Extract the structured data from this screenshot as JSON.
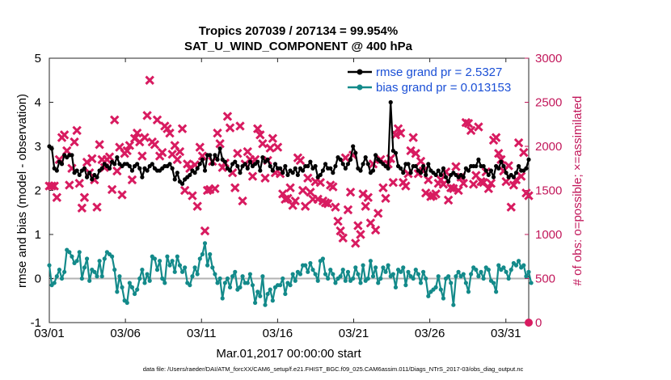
{
  "chart_data": {
    "type": "line",
    "title": "Tropics 207039 / 207134 = 99.954%",
    "subtitle": "SAT_U_WIND_COMPONENT @ 400 hPa",
    "xlabel": "Mar.01,2017 00:00:00 start",
    "ylabel": "rmse and bias (model - observation)",
    "y2label": "# of obs: o=possible; ×=assimilated",
    "ylim": [
      -1,
      5
    ],
    "y2lim": [
      0,
      3000
    ],
    "xlim": [
      1,
      32.5
    ],
    "x_ticks": [
      1,
      6,
      11,
      16,
      21,
      26,
      31
    ],
    "x_tick_labels": [
      "03/01",
      "03/06",
      "03/11",
      "03/16",
      "03/21",
      "03/26",
      "03/31"
    ],
    "y_ticks": [
      -1,
      0,
      1,
      2,
      3,
      4,
      5
    ],
    "y_tick_labels": [
      "-1",
      "0",
      "1",
      "2",
      "3",
      "4",
      "5"
    ],
    "y2_ticks": [
      0,
      500,
      1000,
      1500,
      2000,
      2500,
      3000
    ],
    "y2_tick_labels": [
      "0",
      "500",
      "1000",
      "1500",
      "2000",
      "2500",
      "3000"
    ],
    "zero_line": 0,
    "legend_position": "top-right",
    "series": [
      {
        "name": "rmse grand pr = 2.5327",
        "color": "#000000",
        "marker": "circle",
        "axis": "left",
        "values": [
          3.0,
          2.95,
          2.5,
          2.45,
          2.65,
          2.6,
          2.8,
          2.75,
          2.8,
          2.8,
          2.4,
          2.45,
          2.35,
          2.45,
          2.5,
          2.3,
          2.4,
          2.25,
          2.35,
          2.3,
          2.45,
          2.5,
          2.6,
          2.55,
          2.5,
          2.65,
          2.6,
          2.75,
          2.6,
          2.55,
          2.6,
          2.6,
          2.55,
          2.45,
          2.55,
          2.6,
          2.5,
          2.3,
          2.5,
          2.45,
          2.55,
          2.6,
          2.5,
          2.45,
          2.45,
          2.5,
          2.55,
          2.55,
          2.6,
          2.5,
          2.25,
          2.4,
          2.2,
          2.15,
          2.25,
          2.3,
          2.35,
          2.45,
          2.4,
          2.5,
          2.6,
          2.7,
          2.45,
          2.8,
          2.8,
          2.6,
          2.8,
          2.7,
          2.95,
          2.7,
          2.65,
          2.5,
          2.45,
          2.6,
          2.65,
          2.55,
          2.4,
          2.55,
          2.6,
          2.5,
          2.65,
          2.55,
          2.6,
          2.65,
          2.45,
          2.75,
          2.65,
          2.7,
          2.55,
          2.45,
          2.6,
          2.5,
          2.5,
          2.4,
          2.55,
          2.35,
          2.45,
          2.4,
          2.5,
          2.35,
          2.5,
          2.45,
          2.55,
          2.55,
          2.65,
          2.5,
          2.55,
          2.3,
          2.35,
          2.45,
          2.6,
          2.5,
          2.5,
          2.4,
          2.55,
          2.75,
          2.7,
          2.6,
          2.5,
          2.6,
          2.7,
          3.0,
          2.85,
          2.5,
          2.45,
          2.6,
          2.75,
          2.6,
          2.4,
          2.45,
          2.8,
          2.7,
          2.65,
          2.6,
          2.55,
          2.5,
          4.0,
          2.9,
          2.85,
          2.55,
          2.5,
          2.4,
          2.6,
          2.6,
          2.4,
          2.55,
          2.55,
          2.45,
          2.4,
          2.55,
          2.35,
          2.6,
          2.45,
          2.4,
          2.35,
          2.45,
          2.35,
          2.5,
          2.3,
          2.2,
          2.35,
          2.4,
          2.35,
          2.3,
          2.35,
          2.3,
          2.5,
          2.45,
          2.55,
          2.55,
          2.55,
          2.7,
          2.55,
          2.55,
          2.45,
          2.35,
          2.45,
          2.3,
          2.55,
          2.5,
          2.65,
          2.55,
          2.4,
          2.3,
          2.35,
          2.3,
          2.4,
          2.55,
          2.45,
          2.45,
          2.5,
          2.7
        ]
      },
      {
        "name": "bias grand pr = 0.013153",
        "color": "#138a8a",
        "marker": "circle",
        "axis": "left",
        "values": [
          0.3,
          -0.15,
          -0.1,
          0.05,
          0.2,
          0.0,
          0.15,
          0.65,
          0.6,
          0.5,
          0.35,
          0.4,
          0.6,
          0.0,
          0.25,
          0.45,
          -0.05,
          0.2,
          0.15,
          0.05,
          0.4,
          0.05,
          0.45,
          0.6,
          0.55,
          0.5,
          0.2,
          -0.3,
          0.05,
          -0.2,
          -0.5,
          -0.55,
          -0.1,
          -0.2,
          -0.35,
          -0.25,
          0.0,
          0.2,
          -0.1,
          0.1,
          -0.05,
          0.5,
          0.45,
          0.2,
          0.4,
          0.0,
          -0.1,
          0.5,
          0.3,
          0.4,
          0.15,
          0.5,
          0.3,
          0.15,
          0.25,
          -0.1,
          -0.15,
          0.05,
          0.25,
          0.1,
          0.45,
          0.55,
          0.8,
          0.3,
          0.55,
          0.25,
          0.1,
          -0.1,
          0.0,
          -0.45,
          -0.1,
          0.0,
          -0.2,
          0.05,
          0.15,
          -0.25,
          -0.2,
          0.05,
          -0.1,
          -0.1,
          0.1,
          -0.15,
          -0.55,
          -0.3,
          -0.4,
          0.05,
          -0.6,
          -0.35,
          -0.25,
          -0.5,
          -0.2,
          -0.15,
          -0.15,
          0.0,
          -0.35,
          -0.1,
          -0.15,
          0.1,
          -0.05,
          0.15,
          0.1,
          0.3,
          0.3,
          0.15,
          0.35,
          0.2,
          0.1,
          -0.05,
          0.4,
          0.45,
          0.1,
          0.0,
          0.2,
          0.1,
          -0.1,
          0.0,
          0.05,
          0.2,
          -0.05,
          0.15,
          -0.05,
          0.0,
          0.25,
          0.1,
          -0.1,
          0.3,
          -0.05,
          0.0,
          0.4,
          0.05,
          0.25,
          -0.1,
          0.0,
          0.25,
          0.15,
          0.3,
          0.05,
          0.1,
          -0.2,
          0.2,
          0.15,
          0.25,
          -0.15,
          0.15,
          0.05,
          0.0,
          0.2,
          0.1,
          -0.1,
          0.15,
          0.0,
          -0.4,
          -0.3,
          -0.25,
          -0.2,
          0.05,
          -0.25,
          -0.45,
          0.0,
          0.05,
          -0.1,
          -0.6,
          0.05,
          0.15,
          0.05,
          0.1,
          -0.1,
          -0.3,
          0.1,
          0.25,
          0.2,
          0.05,
          0.15,
          0.0,
          0.25,
          0.2,
          -0.05,
          -0.1,
          -0.3,
          0.3,
          0.2,
          0.25,
          0.15,
          0.0,
          0.2,
          0.35,
          0.3,
          0.4,
          0.25,
          0.3,
          0.05,
          0.15,
          -0.1
        ]
      },
      {
        "name": "obs assimilated",
        "color": "#d81b60",
        "marker": "x",
        "axis": "right",
        "values": [
          1550,
          1550,
          1550,
          1420,
          1850,
          2100,
          2130,
          1950,
          1560,
          1750,
          2050,
          2180,
          1580,
          1300,
          1420,
          1820,
          1700,
          1860,
          1620,
          1310,
          2020,
          1850,
          1760,
          1850,
          1880,
          1510,
          2300,
          1720,
          1990,
          1450,
          1920,
          1950,
          2010,
          1620,
          2090,
          2150,
          2050,
          1890,
          2100,
          2350,
          2750,
          2050,
          2020,
          2300,
          1890,
          1930,
          2230,
          2200,
          2150,
          1910,
          2010,
          1850,
          1940,
          2200,
          1500,
          1800,
          1750,
          1440,
          1790,
          1320,
          1990,
          1890,
          1040,
          1500,
          1510,
          1830,
          1520,
          2150,
          2030,
          1760,
          1810,
          2340,
          2210,
          1700,
          1530,
          1920,
          2230,
          1380,
          1800,
          1940,
          1850,
          1660,
          1850,
          2200,
          2130,
          2030,
          1640,
          1840,
          1980,
          2090,
          1700,
          1990,
          1690,
          1460,
          1400,
          1410,
          1530,
          1330,
          1380,
          1870,
          1840,
          1500,
          1320,
          1640,
          1480,
          1400,
          1600,
          1400,
          1590,
          1380,
          1360,
          1350,
          1560,
          1540,
          1310,
          1150,
          1040,
          960,
          1870,
          1280,
          1480,
          1900,
          900,
          1100,
          1000,
          1460,
          1320,
          1420,
          1130,
          1800,
          1050,
          1240,
          1850,
          1530,
          1410,
          1800,
          1860,
          1590,
          2130,
          2200,
          2150,
          1590,
          1550,
          1690,
          1950,
          2100,
          1920,
          1690,
          1830,
          1720,
          1470,
          1620,
          1430,
          1440,
          1460,
          1580,
          1620,
          1570,
          1710,
          1390,
          1530,
          1520,
          1770,
          1500,
          1650,
          1580,
          2270,
          2260,
          2180,
          1570,
          1670,
          2220,
          1600,
          1590,
          1710,
          1520,
          1580,
          2070,
          2100,
          1920,
          1850,
          1720,
          1600,
          1780,
          1310,
          1560,
          1620,
          2040,
          1660,
          1930,
          1470,
          1440
        ]
      },
      {
        "name": "obs possible",
        "color": "#d81b60",
        "marker": "circle",
        "axis": "right",
        "values": [
          0
        ]
      }
    ]
  },
  "footer": {
    "data_file": "data file: /Users/raeder/DAI/ATM_forcXX/CAM6_setup/f.e21.FHIST_BGC.f09_025.CAM6assim.011/Diags_NTrS_2017-03/obs_diag_output.nc"
  }
}
